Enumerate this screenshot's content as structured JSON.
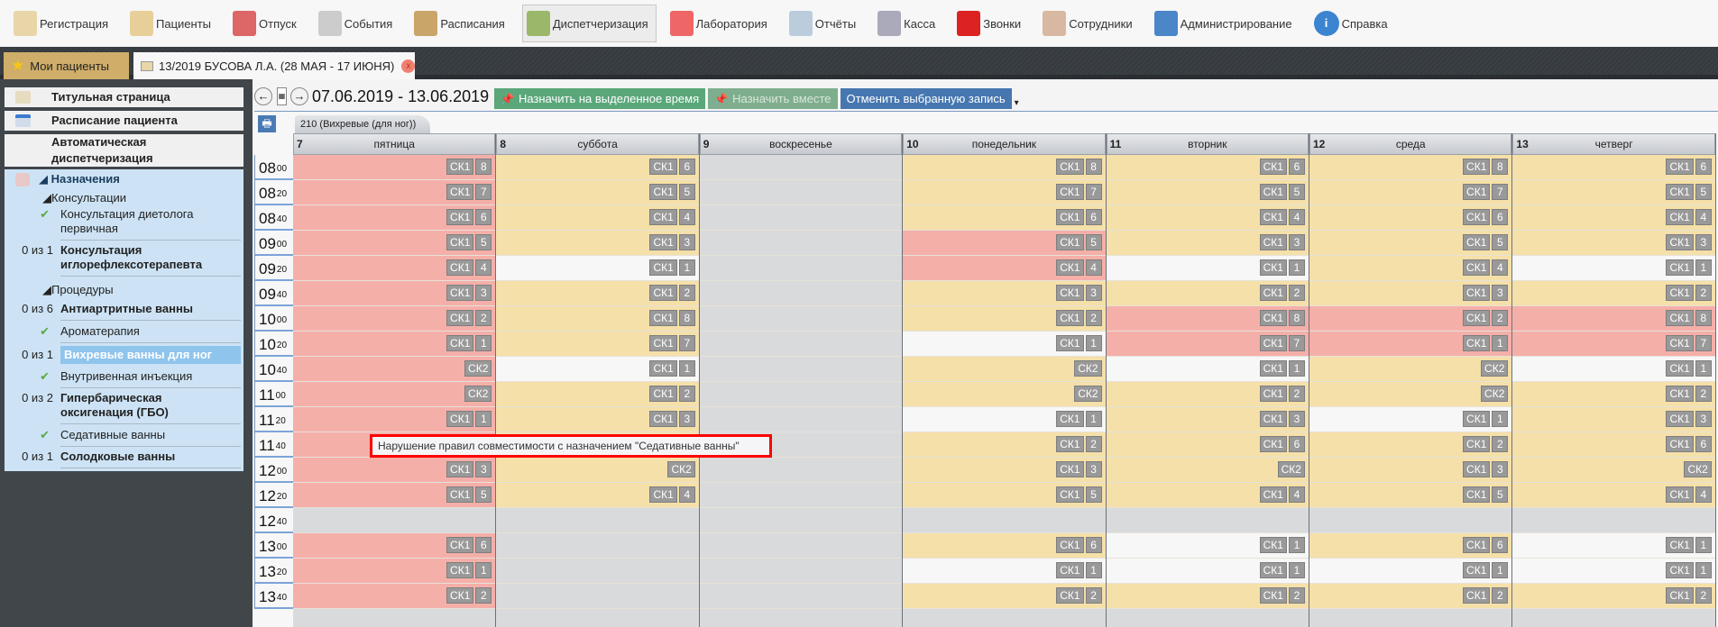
{
  "nav": [
    {
      "label": "Регистрация",
      "icon": "registration-card-icon",
      "color": "#e8d6a8"
    },
    {
      "label": "Пациенты",
      "icon": "patients-folder-icon",
      "color": "#e8cf9a"
    },
    {
      "label": "Отпуск",
      "icon": "pills-jar-icon",
      "color": "#d66"
    },
    {
      "label": "События",
      "icon": "calendar-grid-icon",
      "color": "#ccc"
    },
    {
      "label": "Расписания",
      "icon": "clipboard-clock-icon",
      "color": "#c9a56a"
    },
    {
      "label": "Диспетчеризация",
      "icon": "dispatcher-icon",
      "color": "#9bb86a",
      "active": true
    },
    {
      "label": "Лаборатория",
      "icon": "test-tubes-icon",
      "color": "#e66"
    },
    {
      "label": "Отчёты",
      "icon": "report-chart-icon",
      "color": "#bcd"
    },
    {
      "label": "Касса",
      "icon": "cash-register-icon",
      "color": "#aab"
    },
    {
      "label": "Звонки",
      "icon": "red-phone-icon",
      "color": "#d22"
    },
    {
      "label": "Сотрудники",
      "icon": "staff-icon",
      "color": "#d8b8a0"
    },
    {
      "label": "Администрирование",
      "icon": "tools-icon",
      "color": "#4a86c8"
    },
    {
      "label": "Справка",
      "icon": "info-icon",
      "color": "#3b84d0"
    }
  ],
  "tabs": {
    "my_patients": "Мои пациенты",
    "patient": "13/2019 БУСОВА Л.А. (28 МАЯ - 17 ИЮНЯ)",
    "close": "x"
  },
  "sidebar": {
    "title_page": "Титульная страница",
    "patient_schedule": "Расписание пациента",
    "auto_dispatch_1": "Автоматическая",
    "auto_dispatch_2": "диспетчеризация",
    "tree": {
      "assignments": "Назначения",
      "consultations": "Консультации",
      "dietolog_1": "Консультация диетолога",
      "dietolog_2": "первичная",
      "reflex_count": "0 из 1",
      "reflex_1": "Консультация",
      "reflex_2": "иглорефлексотерапевта",
      "procedures": "Процедуры",
      "antiarthr_count": "0 из 6",
      "antiarthr": "Антиартритные ванны",
      "aroma": "Ароматерапия",
      "whirl_count": "0 из 1",
      "whirl": "Вихревые ванны для ног",
      "iv": "Внутривенная инъекция",
      "hbo_count": "0 из 2",
      "hbo_1": "Гипербарическая",
      "hbo_2": "оксигенация (ГБО)",
      "sedative": "Седативные ванны",
      "licorice_count": "0 из 1",
      "licorice": "Солодковые ванны"
    }
  },
  "toolbar": {
    "prev": "←",
    "next": "→",
    "calendar": "▦",
    "date_range": "07.06.2019 - 13.06.2019",
    "assign_selected": "Назначить на выделенное время",
    "assign_together": "Назначить вместе",
    "cancel_selected": "Отменить выбранную запись",
    "more": "▾",
    "colors": {
      "assign": "#5aa77a",
      "assign_disabled": "#7fae8e",
      "cancel": "#4677b0"
    }
  },
  "room_tab": "210 (Вихревые (для ног))",
  "cell_colors": {
    "r": "#f5afa9",
    "y": "#f5e0a9",
    "w": "#f7f7f7",
    "g": "#d9dadc"
  },
  "times": [
    [
      "08",
      "00"
    ],
    [
      "08",
      "20"
    ],
    [
      "08",
      "40"
    ],
    [
      "09",
      "00"
    ],
    [
      "09",
      "20"
    ],
    [
      "09",
      "40"
    ],
    [
      "10",
      "00"
    ],
    [
      "10",
      "20"
    ],
    [
      "10",
      "40"
    ],
    [
      "11",
      "00"
    ],
    [
      "11",
      "20"
    ],
    [
      "11",
      "40"
    ],
    [
      "12",
      "00"
    ],
    [
      "12",
      "20"
    ],
    [
      "12",
      "40"
    ],
    [
      "13",
      "00"
    ],
    [
      "13",
      "20"
    ],
    [
      "13",
      "40"
    ]
  ],
  "days": [
    {
      "num": "7",
      "name": "пятница",
      "cells": [
        [
          "r",
          "СК1",
          "8"
        ],
        [
          "r",
          "СК1",
          "7"
        ],
        [
          "r",
          "СК1",
          "6"
        ],
        [
          "r",
          "СК1",
          "5"
        ],
        [
          "r",
          "СК1",
          "4"
        ],
        [
          "r",
          "СК1",
          "3"
        ],
        [
          "r",
          "СК1",
          "2"
        ],
        [
          "r",
          "СК1",
          "1"
        ],
        [
          "r",
          "СК2"
        ],
        [
          "r",
          "СК2"
        ],
        [
          "r",
          "СК1",
          "1"
        ],
        [
          "r"
        ],
        [
          "r",
          "СК1",
          "3"
        ],
        [
          "r",
          "СК1",
          "5"
        ],
        [
          "g"
        ],
        [
          "r",
          "СК1",
          "6"
        ],
        [
          "r",
          "СК1",
          "1"
        ],
        [
          "r",
          "СК1",
          "2"
        ]
      ]
    },
    {
      "num": "8",
      "name": "суббота",
      "cells": [
        [
          "y",
          "СК1",
          "6"
        ],
        [
          "y",
          "СК1",
          "5"
        ],
        [
          "y",
          "СК1",
          "4"
        ],
        [
          "y",
          "СК1",
          "3"
        ],
        [
          "w",
          "СК1",
          "1"
        ],
        [
          "y",
          "СК1",
          "2"
        ],
        [
          "y",
          "СК1",
          "8"
        ],
        [
          "y",
          "СК1",
          "7"
        ],
        [
          "w",
          "СК1",
          "1"
        ],
        [
          "y",
          "СК1",
          "2"
        ],
        [
          "y",
          "СК1",
          "3"
        ],
        [
          "y"
        ],
        [
          "y",
          "СК2"
        ],
        [
          "y",
          "СК1",
          "4"
        ],
        [
          "g"
        ],
        [
          "g"
        ],
        [
          "g"
        ],
        [
          "g"
        ]
      ]
    },
    {
      "num": "9",
      "name": "воскресенье",
      "cells": [
        [
          "g"
        ],
        [
          "g"
        ],
        [
          "g"
        ],
        [
          "g"
        ],
        [
          "g"
        ],
        [
          "g"
        ],
        [
          "g"
        ],
        [
          "g"
        ],
        [
          "g"
        ],
        [
          "g"
        ],
        [
          "g"
        ],
        [
          "g"
        ],
        [
          "g"
        ],
        [
          "g"
        ],
        [
          "g"
        ],
        [
          "g"
        ],
        [
          "g"
        ],
        [
          "g"
        ]
      ]
    },
    {
      "num": "10",
      "name": "понедельник",
      "cells": [
        [
          "y",
          "СК1",
          "8"
        ],
        [
          "y",
          "СК1",
          "7"
        ],
        [
          "y",
          "СК1",
          "6"
        ],
        [
          "r",
          "СК1",
          "5"
        ],
        [
          "r",
          "СК1",
          "4"
        ],
        [
          "y",
          "СК1",
          "3"
        ],
        [
          "y",
          "СК1",
          "2"
        ],
        [
          "w",
          "СК1",
          "1"
        ],
        [
          "y",
          "СК2"
        ],
        [
          "y",
          "СК2"
        ],
        [
          "w",
          "СК1",
          "1"
        ],
        [
          "y",
          "СК1",
          "2"
        ],
        [
          "y",
          "СК1",
          "3"
        ],
        [
          "y",
          "СК1",
          "5"
        ],
        [
          "g"
        ],
        [
          "y",
          "СК1",
          "6"
        ],
        [
          "w",
          "СК1",
          "1"
        ],
        [
          "y",
          "СК1",
          "2"
        ]
      ]
    },
    {
      "num": "11",
      "name": "вторник",
      "cells": [
        [
          "y",
          "СК1",
          "6"
        ],
        [
          "y",
          "СК1",
          "5"
        ],
        [
          "y",
          "СК1",
          "4"
        ],
        [
          "y",
          "СК1",
          "3"
        ],
        [
          "w",
          "СК1",
          "1"
        ],
        [
          "y",
          "СК1",
          "2"
        ],
        [
          "r",
          "СК1",
          "8"
        ],
        [
          "r",
          "СК1",
          "7"
        ],
        [
          "w",
          "СК1",
          "1"
        ],
        [
          "y",
          "СК1",
          "2"
        ],
        [
          "y",
          "СК1",
          "3"
        ],
        [
          "y",
          "СК1",
          "6"
        ],
        [
          "y",
          "СК2"
        ],
        [
          "y",
          "СК1",
          "4"
        ],
        [
          "g"
        ],
        [
          "w",
          "СК1",
          "1"
        ],
        [
          "w",
          "СК1",
          "1"
        ],
        [
          "y",
          "СК1",
          "2"
        ]
      ]
    },
    {
      "num": "12",
      "name": "среда",
      "cells": [
        [
          "y",
          "СК1",
          "8"
        ],
        [
          "y",
          "СК1",
          "7"
        ],
        [
          "y",
          "СК1",
          "6"
        ],
        [
          "y",
          "СК1",
          "5"
        ],
        [
          "y",
          "СК1",
          "4"
        ],
        [
          "y",
          "СК1",
          "3"
        ],
        [
          "r",
          "СК1",
          "2"
        ],
        [
          "r",
          "СК1",
          "1"
        ],
        [
          "y",
          "СК2"
        ],
        [
          "y",
          "СК2"
        ],
        [
          "w",
          "СК1",
          "1"
        ],
        [
          "y",
          "СК1",
          "2"
        ],
        [
          "y",
          "СК1",
          "3"
        ],
        [
          "y",
          "СК1",
          "5"
        ],
        [
          "g"
        ],
        [
          "y",
          "СК1",
          "6"
        ],
        [
          "w",
          "СК1",
          "1"
        ],
        [
          "y",
          "СК1",
          "2"
        ]
      ]
    },
    {
      "num": "13",
      "name": "четверг",
      "cells": [
        [
          "y",
          "СК1",
          "6"
        ],
        [
          "y",
          "СК1",
          "5"
        ],
        [
          "y",
          "СК1",
          "4"
        ],
        [
          "y",
          "СК1",
          "3"
        ],
        [
          "w",
          "СК1",
          "1"
        ],
        [
          "y",
          "СК1",
          "2"
        ],
        [
          "r",
          "СК1",
          "8"
        ],
        [
          "r",
          "СК1",
          "7"
        ],
        [
          "w",
          "СК1",
          "1"
        ],
        [
          "y",
          "СК1",
          "2"
        ],
        [
          "y",
          "СК1",
          "3"
        ],
        [
          "y",
          "СК1",
          "6"
        ],
        [
          "y",
          "СК2"
        ],
        [
          "y",
          "СК1",
          "4"
        ],
        [
          "g"
        ],
        [
          "w",
          "СК1",
          "1"
        ],
        [
          "w",
          "СК1",
          "1"
        ],
        [
          "y",
          "СК1",
          "2"
        ]
      ]
    }
  ],
  "tooltip": "Нарушение правил совместимости с назначением \"Седативные ванны\""
}
